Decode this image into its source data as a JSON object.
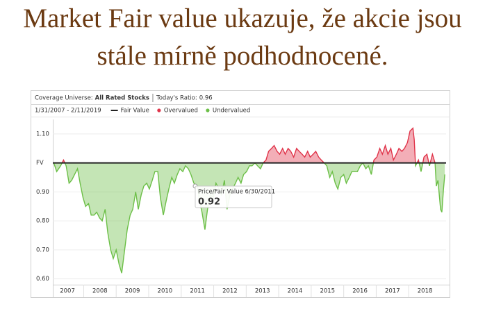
{
  "title": [
    "Market Fair value ukazuje, že akcie jsou",
    "stále mírně podhodnocené."
  ],
  "chart_data": {
    "type": "area",
    "coverage_label": "Coverage Universe:",
    "coverage": "All Rated Stocks",
    "ratio_label": "Today's Ratio:",
    "ratio": "0.96",
    "date_range": "1/31/2007 - 2/11/2019",
    "legend": [
      {
        "name": "Fair Value",
        "color": "#222222"
      },
      {
        "name": "Overvalued",
        "color": "#e0344a"
      },
      {
        "name": "Undervalued",
        "color": "#6cbf47"
      }
    ],
    "fair_value": 1,
    "xlim": [
      2007.05,
      2019.15
    ],
    "xticks": [
      2007,
      2008,
      2009,
      2010,
      2011,
      2012,
      2013,
      2014,
      2015,
      2016,
      2017,
      2018
    ],
    "ylim": [
      0.58,
      1.15
    ],
    "yticks": [
      {
        "value": 1.1,
        "label": "1.10"
      },
      {
        "value": 1,
        "label": "FV"
      },
      {
        "value": 0.9,
        "label": "0.90"
      },
      {
        "value": 0.8,
        "label": "0.80"
      },
      {
        "value": 0.7,
        "label": "0.70"
      },
      {
        "value": 0.6,
        "label": "0.60"
      }
    ],
    "grid": true,
    "x": [
      2007.08,
      2007.17,
      2007.29,
      2007.38,
      2007.46,
      2007.55,
      2007.63,
      2007.72,
      2007.81,
      2007.89,
      2007.98,
      2008.06,
      2008.15,
      2008.23,
      2008.32,
      2008.4,
      2008.49,
      2008.57,
      2008.66,
      2008.74,
      2008.83,
      2008.91,
      2009.0,
      2009.09,
      2009.17,
      2009.26,
      2009.34,
      2009.43,
      2009.51,
      2009.6,
      2009.68,
      2009.77,
      2009.85,
      2009.94,
      2010.02,
      2010.11,
      2010.19,
      2010.28,
      2010.36,
      2010.45,
      2010.54,
      2010.62,
      2010.71,
      2010.79,
      2010.88,
      2010.96,
      2011.05,
      2011.13,
      2011.22,
      2011.3,
      2011.39,
      2011.5,
      2011.56,
      2011.64,
      2011.73,
      2011.81,
      2011.9,
      2011.99,
      2012.07,
      2012.16,
      2012.24,
      2012.33,
      2012.41,
      2012.5,
      2012.58,
      2012.67,
      2012.75,
      2012.84,
      2012.92,
      2013.01,
      2013.1,
      2013.18,
      2013.27,
      2013.35,
      2013.44,
      2013.52,
      2013.61,
      2013.69,
      2013.78,
      2013.86,
      2013.95,
      2014.03,
      2014.12,
      2014.2,
      2014.29,
      2014.37,
      2014.46,
      2014.55,
      2014.63,
      2014.72,
      2014.8,
      2014.89,
      2014.97,
      2015.06,
      2015.14,
      2015.23,
      2015.31,
      2015.4,
      2015.48,
      2015.57,
      2015.65,
      2015.74,
      2015.82,
      2015.91,
      2016.0,
      2016.08,
      2016.17,
      2016.25,
      2016.34,
      2016.42,
      2016.51,
      2016.59,
      2016.68,
      2016.76,
      2016.85,
      2016.93,
      2017.02,
      2017.11,
      2017.19,
      2017.28,
      2017.36,
      2017.45,
      2017.53,
      2017.62,
      2017.7,
      2017.79,
      2017.87,
      2017.96,
      2018.04,
      2018.13,
      2018.17,
      2018.21,
      2018.3,
      2018.38,
      2018.47,
      2018.56,
      2018.64,
      2018.73,
      2018.81,
      2018.85,
      2018.9,
      2018.94,
      2018.98,
      2019.02,
      2019.07,
      2019.11
    ],
    "values": [
      1.0,
      0.97,
      0.99,
      1.01,
      0.99,
      0.93,
      0.94,
      0.96,
      0.98,
      0.93,
      0.88,
      0.85,
      0.86,
      0.82,
      0.82,
      0.83,
      0.81,
      0.8,
      0.84,
      0.76,
      0.7,
      0.67,
      0.7,
      0.65,
      0.62,
      0.7,
      0.77,
      0.82,
      0.84,
      0.9,
      0.84,
      0.89,
      0.92,
      0.93,
      0.91,
      0.94,
      0.97,
      0.97,
      0.88,
      0.82,
      0.87,
      0.91,
      0.95,
      0.93,
      0.96,
      0.98,
      0.97,
      0.99,
      0.98,
      0.96,
      0.93,
      0.92,
      0.87,
      0.83,
      0.77,
      0.84,
      0.89,
      0.88,
      0.93,
      0.91,
      0.89,
      0.94,
      0.84,
      0.89,
      0.91,
      0.93,
      0.95,
      0.93,
      0.96,
      0.97,
      0.99,
      0.99,
      1.0,
      0.99,
      0.98,
      1.0,
      1.01,
      1.04,
      1.05,
      1.06,
      1.04,
      1.03,
      1.05,
      1.03,
      1.05,
      1.04,
      1.02,
      1.05,
      1.04,
      1.03,
      1.02,
      1.04,
      1.02,
      1.03,
      1.04,
      1.02,
      1.01,
      1.0,
      0.99,
      0.95,
      0.97,
      0.93,
      0.91,
      0.95,
      0.96,
      0.93,
      0.95,
      0.97,
      0.97,
      0.97,
      0.99,
      1.0,
      0.98,
      0.99,
      0.96,
      1.01,
      1.02,
      1.05,
      1.03,
      1.06,
      1.03,
      1.05,
      1.01,
      1.03,
      1.05,
      1.04,
      1.05,
      1.07,
      1.11,
      1.12,
      1.08,
      0.99,
      1.01,
      0.97,
      1.02,
      1.03,
      0.99,
      1.03,
      1.0,
      0.92,
      0.94,
      0.89,
      0.84,
      0.83,
      0.91,
      0.96
    ],
    "tooltip": {
      "label": "Price/Fair Value 6/30/2011",
      "value": 0.92
    }
  }
}
